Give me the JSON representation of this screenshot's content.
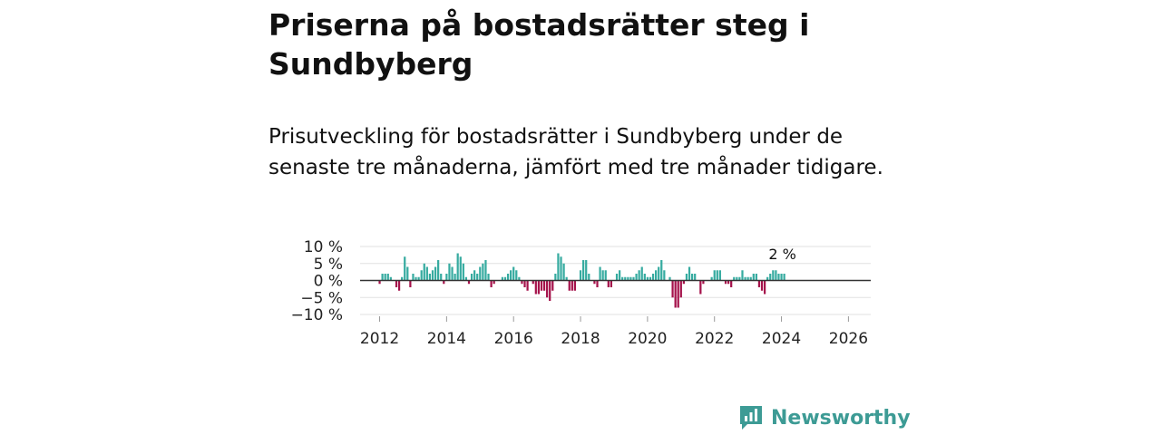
{
  "header": {
    "title": "Priserna på bostadsrätter steg i Sundbyberg",
    "subtitle": "Prisutveckling för bostadsrätter i Sundbyberg under de senaste tre månaderna, jämfört med tre månader tidigare."
  },
  "brand": {
    "name": "Newsworthy",
    "icon": "newsworthy-logo-icon",
    "color": "#3d9b95"
  },
  "chart_data": {
    "type": "bar",
    "x_unit": "month",
    "start": "2011-12",
    "values": [
      0,
      -1,
      2,
      2,
      2,
      1,
      0,
      -2,
      -3,
      1,
      7,
      4,
      -2,
      2,
      1,
      1,
      3,
      5,
      4,
      2,
      3,
      4,
      6,
      2,
      -1,
      2,
      5,
      4,
      2,
      8,
      7,
      5,
      1,
      -1,
      2,
      3,
      2,
      4,
      5,
      6,
      2,
      -2,
      -1,
      0,
      0,
      1,
      1,
      2,
      3,
      4,
      3,
      1,
      -1,
      -2,
      -3,
      0,
      -1,
      -4,
      -4,
      -3,
      -3,
      -5,
      -6,
      -3,
      2,
      8,
      7,
      5,
      1,
      -3,
      -3,
      -3,
      0,
      3,
      6,
      6,
      2,
      0,
      -1,
      -2,
      4,
      3,
      3,
      -2,
      -2,
      0,
      2,
      3,
      1,
      1,
      1,
      1,
      1,
      2,
      3,
      4,
      2,
      1,
      1,
      2,
      3,
      4,
      6,
      3,
      0,
      1,
      -5,
      -8,
      -8,
      -5,
      -1,
      2,
      4,
      2,
      2,
      0,
      -4,
      -1,
      0,
      0,
      1,
      3,
      3,
      3,
      0,
      -1,
      -1,
      -2,
      1,
      1,
      1,
      3,
      1,
      1,
      1,
      2,
      2,
      -2,
      -3,
      -4,
      1,
      2,
      3,
      3,
      2,
      2,
      2
    ],
    "last_label": "2 %",
    "x_ticks": [
      "2012",
      "2014",
      "2016",
      "2018",
      "2020",
      "2022",
      "2024",
      "2026"
    ],
    "y_ticks": [
      "10 %",
      "5 %",
      "0 %",
      "−5 %",
      "−10 %"
    ],
    "y_tick_values": [
      10,
      5,
      0,
      -5,
      -10
    ],
    "ylim": [
      -10,
      10
    ],
    "xlim": [
      "2011-06",
      "2026-09"
    ],
    "grid": true,
    "colors": {
      "positive": "#36aba0",
      "negative": "#a5124b",
      "grid": "#e2e2e2",
      "zero": "#333333",
      "ticks": "#999999"
    }
  }
}
